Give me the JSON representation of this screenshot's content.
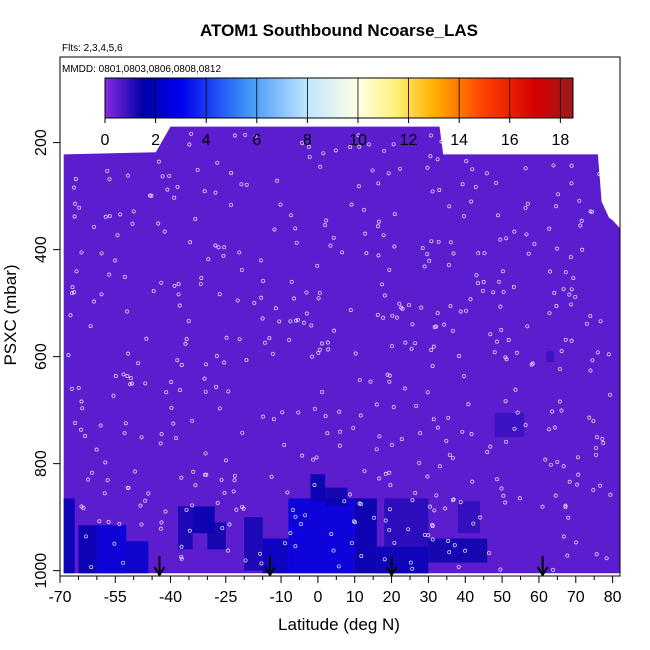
{
  "chart_data": {
    "type": "heatmap",
    "title": "ATOM1 Southbound Ncoarse_LAS",
    "flights_label": "Flts: 2,3,4,5,6",
    "dates_label": "MMDD: 0801,0803,0806,0808,0812",
    "xlabel": "Latitude (deg N)",
    "ylabel": "PSXC (mbar)",
    "xlim": [
      -70,
      82
    ],
    "ylim": [
      1010,
      40
    ],
    "x_ticks": [
      -70,
      -55,
      -40,
      -25,
      -10,
      0,
      10,
      20,
      30,
      40,
      50,
      60,
      70,
      80
    ],
    "x_minor_ticks": [
      -65,
      -60,
      -50,
      -45,
      -35,
      -30,
      -20,
      -15,
      -5,
      5,
      15,
      25,
      35,
      45,
      55,
      65,
      75
    ],
    "y_ticks": [
      200,
      400,
      600,
      800,
      1000
    ],
    "colorbar": {
      "min": 0,
      "max": 18.5,
      "ticks": [
        0,
        2,
        4,
        6,
        8,
        10,
        12,
        14,
        16,
        18
      ],
      "stops": [
        {
          "v": 0,
          "c": "#8a2be2"
        },
        {
          "v": 1.5,
          "c": "#0000a8"
        },
        {
          "v": 3,
          "c": "#0000f0"
        },
        {
          "v": 5.5,
          "c": "#3a8df8"
        },
        {
          "v": 8,
          "c": "#bfe6ff"
        },
        {
          "v": 10,
          "c": "#ffffe6"
        },
        {
          "v": 11.5,
          "c": "#fff07a"
        },
        {
          "v": 13,
          "c": "#ffb000"
        },
        {
          "v": 15,
          "c": "#ff4000"
        },
        {
          "v": 17,
          "c": "#d40000"
        },
        {
          "v": 18.5,
          "c": "#9c1a1a"
        }
      ]
    },
    "background_value": 0.5,
    "coverage_top": [
      [
        -69,
        222
      ],
      [
        -44,
        218
      ],
      [
        -40,
        170
      ],
      [
        -8,
        170
      ],
      [
        5,
        170
      ],
      [
        33,
        170
      ],
      [
        34,
        222
      ],
      [
        76,
        222
      ],
      [
        77,
        310
      ],
      [
        79,
        340
      ],
      [
        80,
        345
      ],
      [
        82,
        360
      ],
      [
        82,
        955
      ]
    ],
    "high_value_blocks": [
      {
        "x0": -69,
        "x1": -66,
        "p0": 865,
        "p1": 1005,
        "v": 1.8
      },
      {
        "x0": -65,
        "x1": -60,
        "p0": 915,
        "p1": 1005,
        "v": 1.7
      },
      {
        "x0": -60,
        "x1": -52,
        "p0": 915,
        "p1": 1005,
        "v": 2.5
      },
      {
        "x0": -52,
        "x1": -46,
        "p0": 945,
        "p1": 1005,
        "v": 2.2
      },
      {
        "x0": -38,
        "x1": -34,
        "p0": 880,
        "p1": 960,
        "v": 1.3
      },
      {
        "x0": -34,
        "x1": -28,
        "p0": 880,
        "p1": 930,
        "v": 1.6
      },
      {
        "x0": -30,
        "x1": -25,
        "p0": 910,
        "p1": 960,
        "v": 1.4
      },
      {
        "x0": -20,
        "x1": -15,
        "p0": 900,
        "p1": 1000,
        "v": 1.3
      },
      {
        "x0": -15,
        "x1": -8,
        "p0": 940,
        "p1": 1005,
        "v": 2.0
      },
      {
        "x0": -8,
        "x1": 10,
        "p0": 865,
        "p1": 1005,
        "v": 2.6
      },
      {
        "x0": -2,
        "x1": 2,
        "p0": 820,
        "p1": 870,
        "v": 1.6
      },
      {
        "x0": 2,
        "x1": 8,
        "p0": 845,
        "p1": 880,
        "v": 1.4
      },
      {
        "x0": 10,
        "x1": 16,
        "p0": 865,
        "p1": 1005,
        "v": 1.6
      },
      {
        "x0": 16,
        "x1": 30,
        "p0": 955,
        "p1": 1005,
        "v": 1.8
      },
      {
        "x0": 18,
        "x1": 30,
        "p0": 865,
        "p1": 955,
        "v": 1.1
      },
      {
        "x0": 30,
        "x1": 46,
        "p0": 940,
        "p1": 985,
        "v": 1.4
      },
      {
        "x0": 38,
        "x1": 44,
        "p0": 870,
        "p1": 930,
        "v": 1.0
      },
      {
        "x0": 48,
        "x1": 56,
        "p0": 705,
        "p1": 750,
        "v": 0.9
      },
      {
        "x0": 62,
        "x1": 64,
        "p0": 590,
        "p1": 610,
        "v": 0.9
      }
    ],
    "profile_markers": [
      -43,
      -13,
      20,
      61
    ]
  }
}
